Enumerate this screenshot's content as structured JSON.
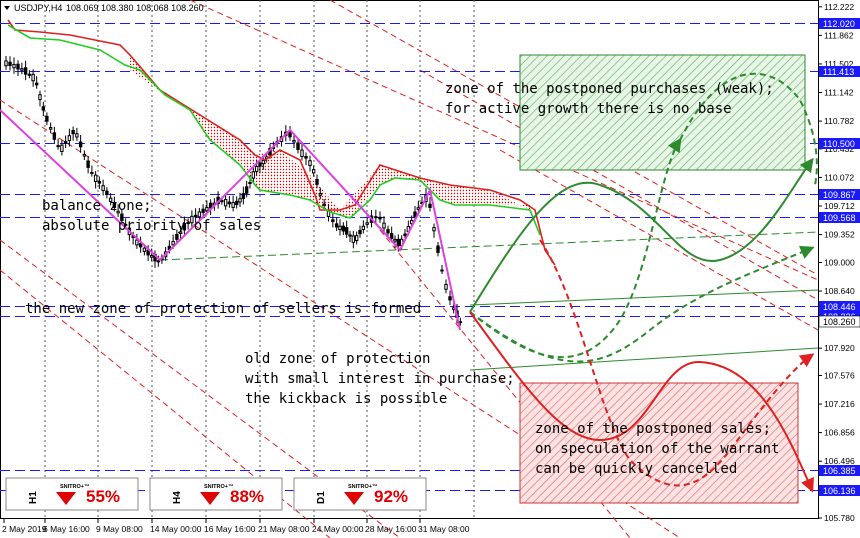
{
  "header": {
    "symbol": "USDJPY,H4",
    "ohlc": "108.069 108.380 108.068 108.260"
  },
  "chart_data": {
    "type": "candlestick",
    "title": "USDJPY,H4",
    "ylim": [
      105.78,
      112.27
    ],
    "x_ticks": [
      "2 May 2019",
      "6 May 16:00",
      "9 May 08:00",
      "14 May 00:00",
      "16 May 16:00",
      "21 May 08:00",
      "24 May 00:00",
      "28 May 16:00",
      "31 May 08:00"
    ],
    "y_ticks": [
      "112.222",
      "111.862",
      "111.502",
      "111.142",
      "110.782",
      "110.432",
      "110.072",
      "109.712",
      "109.352",
      "109.000",
      "108.640",
      "108.280",
      "107.920",
      "107.576",
      "107.216",
      "106.856",
      "106.496",
      "106.136",
      "105.780"
    ],
    "level_lines": [
      {
        "label": "112.020",
        "value": 112.02,
        "color": "#1a1aff"
      },
      {
        "label": "111.413",
        "value": 111.413,
        "color": "#1a1aff"
      },
      {
        "label": "110.500",
        "value": 110.5,
        "color": "#1a1aff"
      },
      {
        "label": "109.867",
        "value": 109.867,
        "color": "#1a1aff"
      },
      {
        "label": "109.568",
        "value": 109.568,
        "color": "#1a1aff"
      },
      {
        "label": "108.446",
        "value": 108.446,
        "color": "#1a1aff"
      },
      {
        "label": "108.326",
        "value": 108.326,
        "color": "#1a1aff"
      },
      {
        "label": "106.385",
        "value": 106.385,
        "color": "#1a1aff"
      },
      {
        "label": "106.136",
        "value": 106.136,
        "color": "#1a1aff"
      }
    ],
    "current_price": {
      "label": "108.260",
      "value": 108.26
    },
    "grid": false,
    "annotations": [
      {
        "id": "balance",
        "lines": [
          "balance zone;",
          "absolute priority of sales"
        ]
      },
      {
        "id": "new-zone",
        "lines": [
          "the new zone of protection of sellers is formed"
        ]
      },
      {
        "id": "old-zone",
        "lines": [
          "old zone of protection",
          "with small interest in purchase;",
          "the kickback is possible"
        ]
      },
      {
        "id": "purchases",
        "lines": [
          "zone of the postponed purchases (weak);",
          "for active growth there is no base"
        ]
      },
      {
        "id": "sales",
        "lines": [
          "zone of the postponed sales;",
          "on speculation of the warrant",
          "can be quickly cancelled"
        ]
      }
    ],
    "widgets": [
      {
        "brand": "SNITRO+™",
        "timeframe": "H1",
        "direction": "down",
        "probability": "55%"
      },
      {
        "brand": "SNITRO+™",
        "timeframe": "H4",
        "direction": "down",
        "probability": "88%"
      },
      {
        "brand": "SNITRO+™",
        "timeframe": "D1",
        "direction": "down",
        "probability": "92%"
      }
    ]
  }
}
